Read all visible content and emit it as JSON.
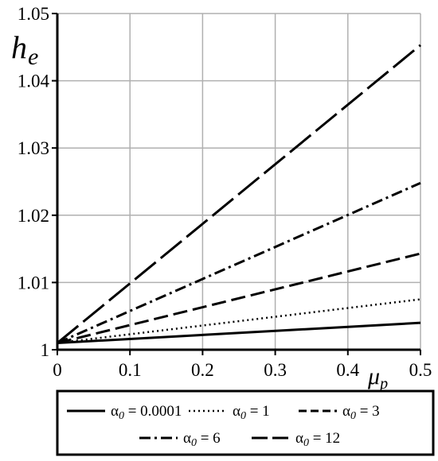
{
  "chart_data": {
    "type": "line",
    "title": "",
    "xlabel": {
      "main": "μ",
      "sub": "p"
    },
    "ylabel": {
      "main": "h",
      "sub": "e"
    },
    "xlim": [
      0,
      0.5
    ],
    "ylim": [
      1,
      1.05
    ],
    "x_ticks": [
      "0",
      "0.1",
      "0.2",
      "0.3",
      "0.4",
      "0.5"
    ],
    "y_ticks": [
      "1",
      "1.01",
      "1.02",
      "1.03",
      "1.04",
      "1.05"
    ],
    "grid": true,
    "legend_position": "bottom",
    "series": [
      {
        "symbol": "α",
        "sub": "0",
        "value_text": " = 0.0001",
        "style": "solid",
        "x": [
          0,
          0.5
        ],
        "y": [
          1.001,
          1.004
        ]
      },
      {
        "symbol": "α",
        "sub": "0",
        "value_text": " = 1",
        "style": "dotted",
        "x": [
          0,
          0.5
        ],
        "y": [
          1.001,
          1.0075
        ]
      },
      {
        "symbol": "α",
        "sub": "0",
        "value_text": " = 3",
        "style": "dashed",
        "x": [
          0,
          0.5
        ],
        "y": [
          1.001,
          1.0143
        ]
      },
      {
        "symbol": "α",
        "sub": "0",
        "value_text": " = 6",
        "style": "dash-dot",
        "x": [
          0,
          0.5
        ],
        "y": [
          1.001,
          1.0248
        ]
      },
      {
        "symbol": "α",
        "sub": "0",
        "value_text": " = 12",
        "style": "long-dash",
        "x": [
          0,
          0.5
        ],
        "y": [
          1.001,
          1.0453
        ]
      }
    ]
  }
}
